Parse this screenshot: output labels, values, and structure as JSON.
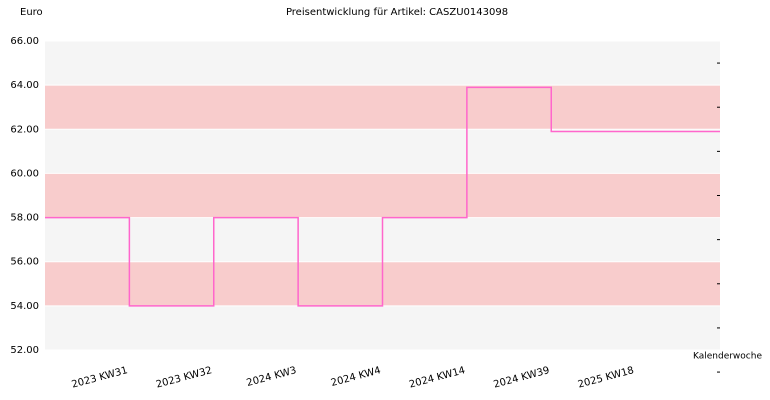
{
  "chart_data": {
    "type": "step",
    "title": "Preisentwicklung für Artikel: CASZU0143098",
    "y_label": "Euro",
    "x_label": "Kalenderwoche",
    "categories": [
      "2023 KW31",
      "2023 KW32",
      "2024 KW3",
      "2024 KW4",
      "2024 KW14",
      "2024 KW39",
      "2025 KW18"
    ],
    "values": [
      58,
      54,
      58,
      54,
      58,
      63.9,
      61.9
    ],
    "color": "#ff66cc",
    "band_colors": [
      "#f5f5f5",
      "#f8cccc"
    ],
    "ylim": [
      52,
      66
    ],
    "yticks": [
      {
        "value": 52,
        "label": "52.00"
      },
      {
        "value": 54,
        "label": "54.00"
      },
      {
        "value": 56,
        "label": "56.00"
      },
      {
        "value": 58,
        "label": "58.00"
      },
      {
        "value": 60,
        "label": "60.00"
      },
      {
        "value": 62,
        "label": "62.00"
      },
      {
        "value": 64,
        "label": "64.00"
      },
      {
        "value": 66,
        "label": "66.00"
      }
    ]
  }
}
